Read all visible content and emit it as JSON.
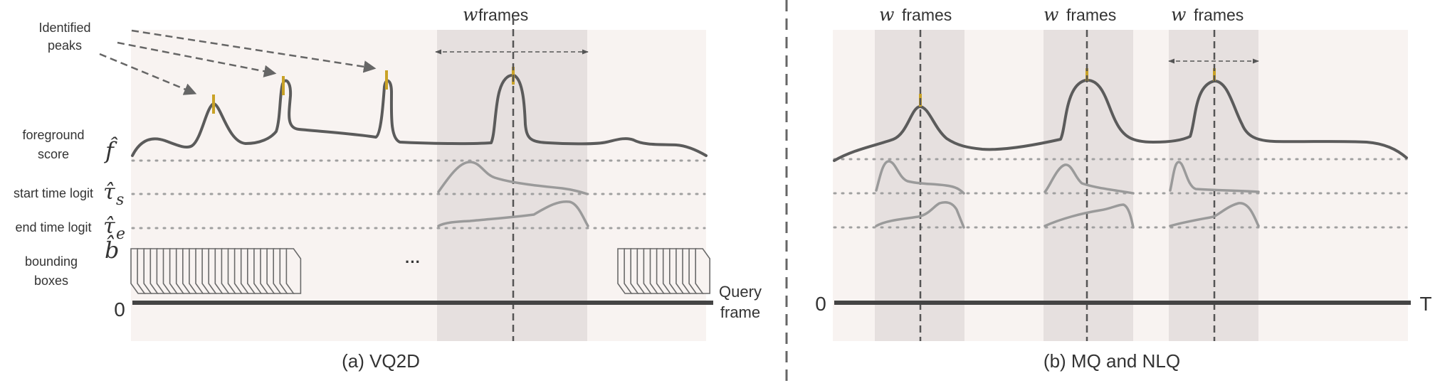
{
  "panel_a": {
    "caption": "(a)  VQ2D",
    "annotation": {
      "line1": "Identified",
      "line2": "peaks"
    },
    "window_label": {
      "var": "w",
      "text": "frames"
    },
    "rows": [
      {
        "label_line1": "foreground",
        "label_line2": "score",
        "symbol": "f̂",
        "subscript": ""
      },
      {
        "label_line1": "start time logit",
        "label_line2": "",
        "symbol": "τ̂",
        "subscript": "s"
      },
      {
        "label_line1": "end time logit",
        "label_line2": "",
        "symbol": "τ̂",
        "subscript": "e"
      },
      {
        "label_line1": "bounding",
        "label_line2": "boxes",
        "symbol": "b̂",
        "subscript": ""
      }
    ],
    "ellipsis": "···",
    "axis_start": "0",
    "axis_end_line1": "Query",
    "axis_end_line2": "frame"
  },
  "panel_b": {
    "caption": "(b)  MQ and NLQ",
    "window_labels": [
      {
        "var": "w",
        "text": "frames"
      },
      {
        "var": "w",
        "text": "frames"
      },
      {
        "var": "w",
        "text": "frames"
      }
    ],
    "axis_start": "0",
    "axis_end": "T"
  },
  "colors": {
    "panel_bg": "#f8f3f1",
    "window_band": "#e6e0df",
    "curve": "#5b5b5b",
    "logit_curve": "#9a9a9a",
    "peak_marker": "#c9a227",
    "dotted": "#a0a0a0"
  }
}
